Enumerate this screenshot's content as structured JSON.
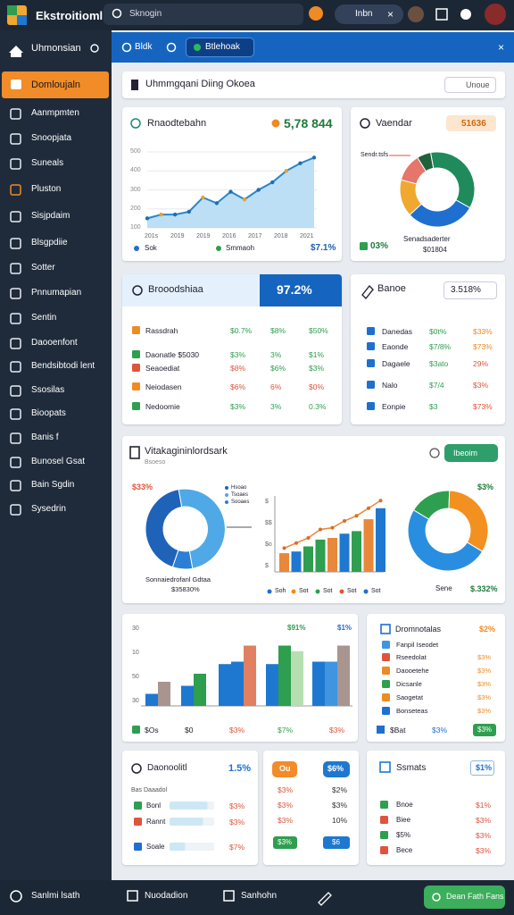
{
  "header": {
    "brand": "Ekstroitioml",
    "search": "Sknogin",
    "pill": "Inbn"
  },
  "sidebar": {
    "top": "Uhmonsian",
    "active": "Domloujaln",
    "items": [
      "Aanmpmten",
      "Snoopjata",
      "Suneals",
      "Pluston",
      "Sisjpdaim",
      "Blsgpdiie",
      "Sotter",
      "Pnnumapian",
      "Sentin",
      "Daooenfont",
      "Bendsibtodi lent",
      "Ssosilas",
      "Bioopats",
      "Banis f",
      "Bunosel Gsat",
      "Bain Sgdin",
      "Sysedrin"
    ]
  },
  "tabs": [
    "Bldk",
    "Btlehoak"
  ],
  "page": {
    "title": "Uhmmgqani Diing Okoea",
    "button": "Unoue"
  },
  "revenue": {
    "title": "Rnaodtebahn",
    "total": "5,78 844",
    "ylim": [
      100,
      500
    ],
    "yticks": [
      100,
      200,
      300,
      400,
      500
    ],
    "x_labels": [
      "201s",
      "2019",
      "2019",
      "2016",
      "2017",
      "2018",
      "2021"
    ],
    "values": [
      150,
      170,
      170,
      185,
      260,
      230,
      290,
      250,
      300,
      340,
      400,
      440,
      470
    ],
    "legend": [
      "Sok",
      "Smmaoh"
    ],
    "change": "$7.1%"
  },
  "vendor": {
    "title": "Vaendar",
    "badge": "51636",
    "label": "Sendr.tsfs",
    "values": [
      36,
      30,
      16,
      12,
      6
    ],
    "pct": "03%",
    "caption": "Senadsaderter",
    "sub": "$01804"
  },
  "sales": {
    "title": "Brooodshiaa",
    "value": "97.2%",
    "rows": [
      [
        "Rassdrah",
        "$0.7%",
        "$8%",
        "$50%"
      ],
      [
        "Daonatle $5030",
        "$3%",
        "3%",
        "$1%"
      ],
      [
        "Seaoediat",
        "$8%",
        "$6%",
        "$3%"
      ],
      [
        "Neiodasen",
        "$6%",
        "6%",
        "$0%"
      ],
      [
        "Nedoomie",
        "$3%",
        "3%",
        "0.3%"
      ]
    ]
  },
  "balance": {
    "title": "Banoe",
    "value": "3.518%",
    "rows": [
      [
        "Danedas",
        "$0t%",
        "$33%"
      ],
      [
        "Eaonde",
        "$7/8%",
        "$73%"
      ],
      [
        "Dagaele",
        "$3ato",
        "29%"
      ],
      [
        "Nalo",
        "$7/4",
        "$3%"
      ],
      [
        "Eonpie",
        "$3",
        "$73%"
      ]
    ]
  },
  "analytics": {
    "title": "Vitakagininlordsark",
    "subtitle": "Bsoeso",
    "button": "Ibeoim",
    "donut1": {
      "label": "$33%",
      "legend": [
        "Hsoao",
        "Tsoaes",
        "Sooaes"
      ],
      "values": [
        42,
        50,
        8
      ],
      "caption": "Sonnaiedrofanl Gdtaa",
      "sub": "$35830%"
    },
    "bars": {
      "y_labels": [
        "$",
        "$$",
        "$o",
        "$"
      ],
      "values": [
        22,
        24,
        30,
        38,
        40,
        45,
        48,
        62,
        75
      ],
      "line": [
        28,
        34,
        40,
        50,
        52,
        60,
        66,
        75,
        84
      ],
      "legend": [
        "Soh",
        "Sot",
        "Sot",
        "Sot",
        "Sot"
      ]
    },
    "donut2": {
      "label": "$3%",
      "values": [
        17,
        33,
        50
      ],
      "caption": "Sene",
      "sub": "$.332%"
    }
  },
  "groups": {
    "y_labels": [
      "30",
      "10",
      "50",
      "30"
    ],
    "values": [
      [
        15,
        30
      ],
      [
        25,
        40
      ],
      [
        52,
        55,
        75
      ],
      [
        52,
        75,
        68
      ],
      [
        55,
        55,
        75
      ]
    ],
    "top_labels": [
      "$91%",
      "$1%"
    ],
    "footer": [
      "$Os",
      "$0",
      "$3%",
      "$7%",
      "$3%"
    ]
  },
  "list": {
    "title": "Dromnotalas",
    "value": "$2%",
    "header": "Fanpil Iseodet",
    "rows": [
      [
        "Rseedolat",
        "$3%"
      ],
      [
        "Daooetehe",
        "$3%"
      ],
      [
        "Dicsanle",
        "$3%"
      ],
      [
        "Saogetat",
        "$3%"
      ],
      [
        "Bonseteas",
        "$3%"
      ]
    ],
    "footer": [
      "$Bat",
      "$3%",
      "$3%"
    ]
  },
  "progress": {
    "title": "Daonoolitl",
    "value": "1.5%",
    "header": "Bas Daaadol",
    "rows": [
      [
        "Bonl",
        "$3%"
      ],
      [
        "Rannt",
        "$3%"
      ],
      [
        "Soale",
        "$7%"
      ]
    ],
    "values": [
      85,
      75,
      35
    ]
  },
  "badges": {
    "top": [
      "Ou",
      "$6%"
    ],
    "left": [
      "$3%",
      "$3%",
      "$3%"
    ],
    "right": [
      "$2%",
      "$3%",
      "10%"
    ],
    "bottom": [
      "$3%",
      "$6"
    ]
  },
  "stats": {
    "title": "Ssmats",
    "badge": "$1%",
    "rows": [
      [
        "Bnoe",
        "$1%"
      ],
      [
        "Biee",
        "$3%"
      ],
      [
        "$5%",
        "$3%"
      ],
      [
        "Bece",
        "$3%"
      ]
    ]
  },
  "footer": {
    "items": [
      "Sanlmi lsath",
      "Nuodadion",
      "Sanhohn"
    ],
    "button": "Dean Fath Fans"
  }
}
